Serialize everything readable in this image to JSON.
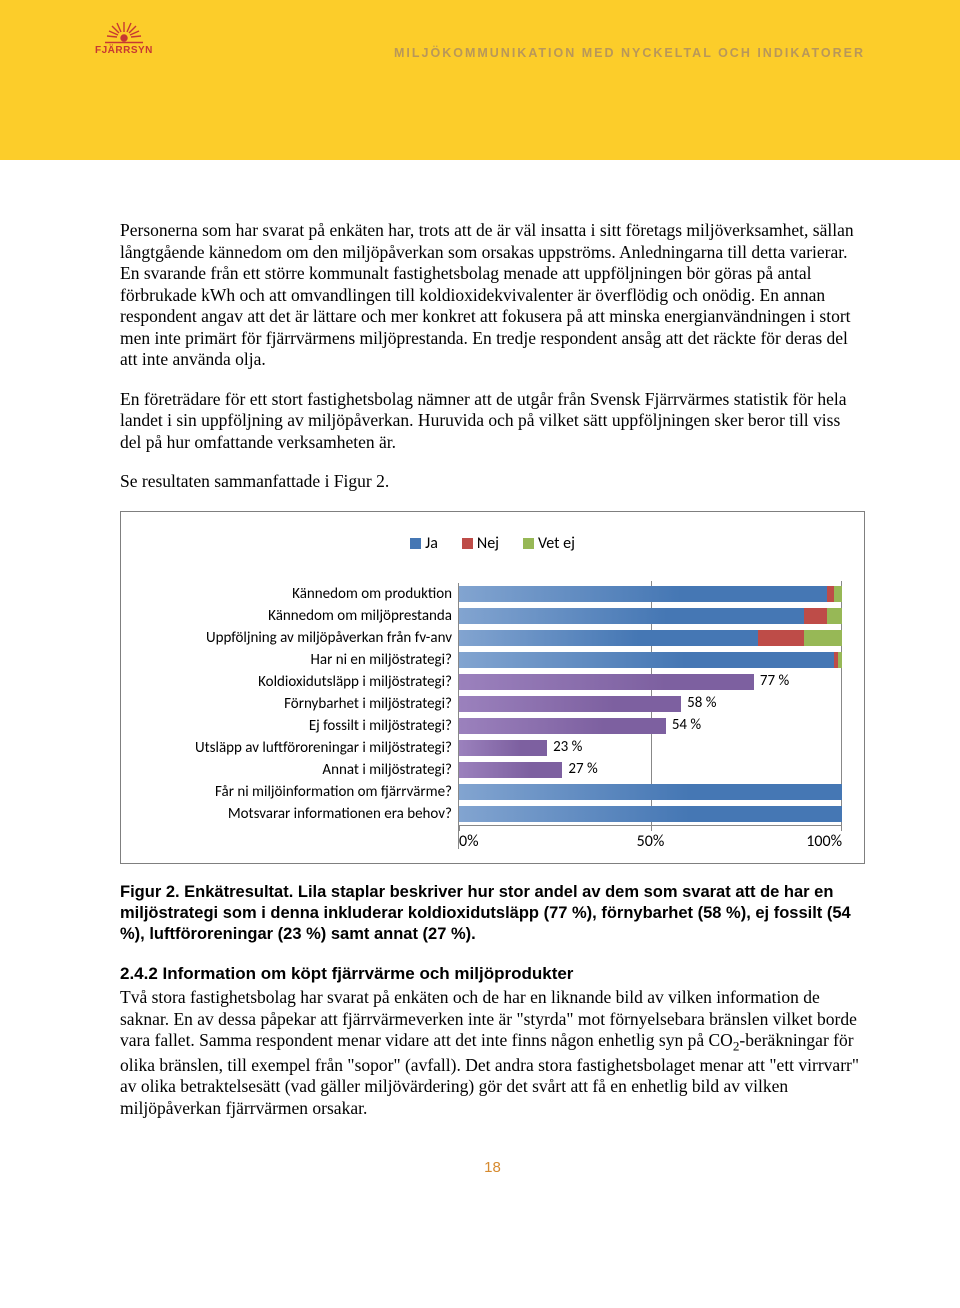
{
  "header": {
    "logo_text": "FJÄRRSYN",
    "doc_title": "MILJÖKOMMUNIKATION MED NYCKELTAL OCH INDIKATORER"
  },
  "paragraphs": {
    "p1": "Personerna som har svarat på enkäten har, trots att de är väl insatta i sitt företags miljöverksamhet, sällan långtgående kännedom om den miljöpåverkan som orsakas uppströms. Anledningarna till detta varierar. En svarande från ett större kommunalt fastighetsbolag menade att uppföljningen bör göras på antal förbrukade kWh och att omvandlingen till koldioxidekvivalenter är överflödig och onödig. En annan respondent angav att det är lättare och mer konkret att fokusera på att minska energianvändningen i stort men inte primärt för fjärrvärmens miljöprestanda. En tredje respondent ansåg att det räckte för deras del att inte använda olja.",
    "p2": "En företrädare för ett stort fastighetsbolag nämner att de utgår från Svensk Fjärrvärmes statistik för hela landet i sin uppföljning av miljöpåverkan. Huruvida och på vilket sätt uppföljningen sker beror till viss del på hur omfattande verksamheten är.",
    "p3": "Se resultaten sammanfattade i Figur 2."
  },
  "chart": {
    "legend": [
      {
        "label": "Ja",
        "color": "#4577b4"
      },
      {
        "label": "Nej",
        "color": "#be4c48"
      },
      {
        "label": "Vet ej",
        "color": "#97b856"
      }
    ],
    "categories": [
      {
        "label": "Kännedom om produktion",
        "ja": 96,
        "nej": 2,
        "vetej": 2,
        "pct_text": null
      },
      {
        "label": "Kännedom om miljöprestanda",
        "ja": 90,
        "nej": 6,
        "vetej": 4,
        "pct_text": null
      },
      {
        "label": "Uppföljning av miljöpåverkan från fv-anv",
        "ja": 78,
        "nej": 12,
        "vetej": 10,
        "pct_text": null
      },
      {
        "label": "Har ni en miljöstrategi?",
        "ja": 98,
        "nej": 1,
        "vetej": 1,
        "pct_text": null
      },
      {
        "label": "Koldioxidutsläpp i miljöstrategi?",
        "purple": 77,
        "pct_text": "77 %"
      },
      {
        "label": "Förnybarhet i miljöstrategi?",
        "purple": 58,
        "pct_text": "58 %"
      },
      {
        "label": "Ej fossilt i miljöstrategi?",
        "purple": 54,
        "pct_text": "54 %"
      },
      {
        "label": "Utsläpp av luftföroreningar i miljöstrategi?",
        "purple": 23,
        "pct_text": "23 %"
      },
      {
        "label": "Annat i miljöstrategi?",
        "purple": 27,
        "pct_text": "27 %"
      },
      {
        "label": "Får ni miljöinformation om fjärrvärme?",
        "ja": 100,
        "nej": 0,
        "vetej": 0,
        "pct_text": null
      },
      {
        "label": "Motsvarar informationen era behov?",
        "ja": 100,
        "nej": 0,
        "vetej": 0,
        "pct_text": null
      }
    ],
    "colors": {
      "ja": "#4577b4",
      "nej": "#be4c48",
      "vetej": "#97b856",
      "purple": "#7d60a0",
      "ja_highlight": "#82a4d0"
    },
    "x_axis": {
      "ticks": [
        0,
        50,
        100
      ],
      "labels": [
        "0%",
        "50%",
        "100%"
      ]
    }
  },
  "caption": {
    "strong_lead": "Figur 2. Enkätresultat.",
    "rest": " Lila staplar beskriver hur stor andel av dem som svarat att de har en miljöstrategi som i denna inkluderar koldioxidutsläpp (77 %), förnybarhet (58 %), ej fossilt (54 %), luftföroreningar (23 %) samt annat (27 %)."
  },
  "section": {
    "heading": "2.4.2 Information om köpt fjärrvärme och miljöprodukter",
    "body_pre": "Två stora fastighetsbolag har svarat på enkäten och de har en liknande bild av vilken information de saknar. En av dessa påpekar att fjärrvärmeverken inte är \"styrda\" mot förnyelsebara bränslen vilket borde vara fallet. Samma respondent menar vidare att det inte finns någon enhetlig syn på CO",
    "co2_sub": "2",
    "body_post": "-beräkningar för olika bränslen, till exempel från \"sopor\" (avfall). Det andra stora fastighetsbolaget menar att \"ett virrvarr\" av olika betraktelsesätt (vad gäller miljövärdering) gör det svårt att få en enhetlig bild av vilken miljöpåverkan fjärrvärmen orsakar."
  },
  "page_number": "18"
}
